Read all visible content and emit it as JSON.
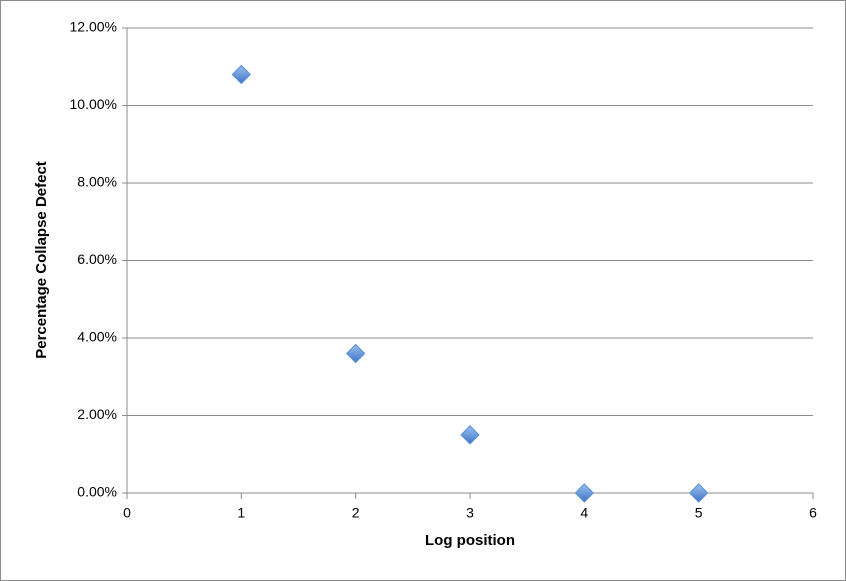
{
  "chart_data": {
    "type": "scatter",
    "x_label": "Log position",
    "y_label": "Percentage Collapse Defect",
    "x": [
      1,
      2,
      3,
      4,
      5
    ],
    "values": [
      10.8,
      3.6,
      1.5,
      0,
      0
    ],
    "color": "#5b8fd6",
    "xlim": [
      0,
      6
    ],
    "xticks": [
      0,
      1,
      2,
      3,
      4,
      5,
      6
    ],
    "ylim": [
      0,
      12
    ],
    "yticks": [
      {
        "value": 0,
        "label": "0.00%"
      },
      {
        "value": 2,
        "label": "2.00%"
      },
      {
        "value": 4,
        "label": "4.00%"
      },
      {
        "value": 6,
        "label": "6.00%"
      },
      {
        "value": 8,
        "label": "8.00%"
      },
      {
        "value": 10,
        "label": "10.00%"
      },
      {
        "value": 12,
        "label": "12.00%"
      }
    ],
    "grid": true
  }
}
